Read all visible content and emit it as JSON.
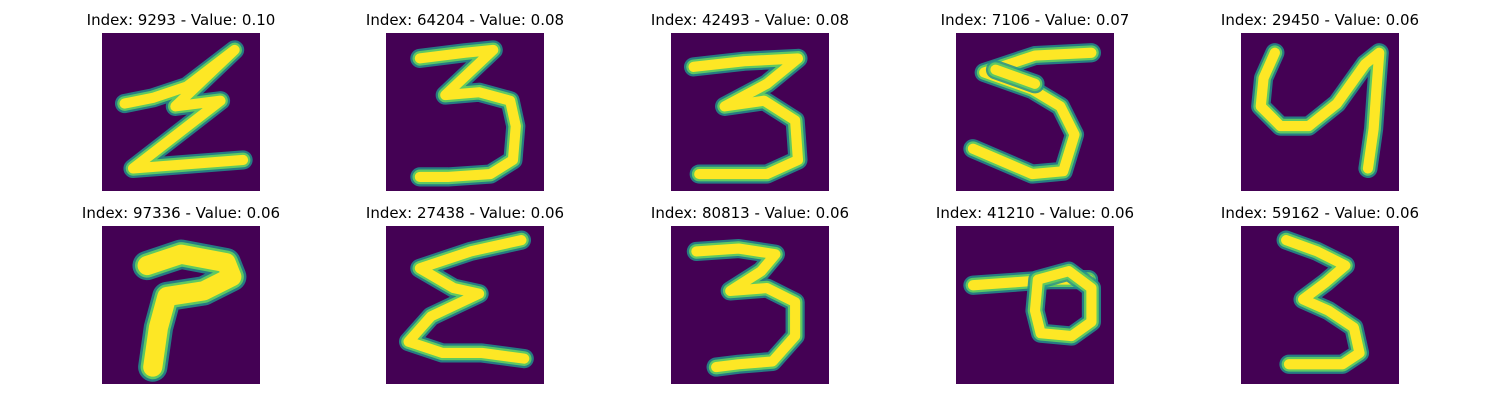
{
  "colors": {
    "background": "#440154",
    "stroke_low": "#21918c",
    "stroke_mid": "#5ec962",
    "stroke_high": "#fde725"
  },
  "panels": [
    {
      "title": "Index: 9293 - Value: 0.10",
      "icon": "handwritten-digit-image"
    },
    {
      "title": "Index: 64204 - Value: 0.08",
      "icon": "handwritten-digit-image"
    },
    {
      "title": "Index: 42493 - Value: 0.08",
      "icon": "handwritten-digit-image"
    },
    {
      "title": "Index: 7106 - Value: 0.07",
      "icon": "handwritten-digit-image"
    },
    {
      "title": "Index: 29450 - Value: 0.06",
      "icon": "handwritten-digit-image"
    },
    {
      "title": "Index: 97336 - Value: 0.06",
      "icon": "handwritten-digit-image"
    },
    {
      "title": "Index: 27438 - Value: 0.06",
      "icon": "handwritten-digit-image"
    },
    {
      "title": "Index: 80813 - Value: 0.06",
      "icon": "handwritten-digit-image"
    },
    {
      "title": "Index: 41210 - Value: 0.06",
      "icon": "handwritten-digit-image"
    },
    {
      "title": "Index: 59162 - Value: 0.06",
      "icon": "handwritten-digit-image"
    }
  ]
}
